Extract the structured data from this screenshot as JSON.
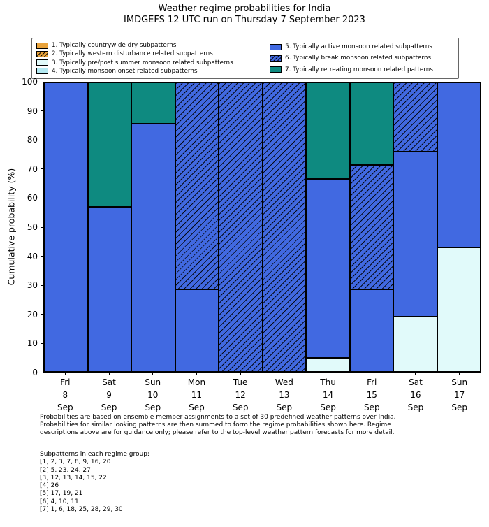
{
  "title": "Weather regime probabilities for India",
  "subtitle": "IMDGEFS 12 UTC run on Thursday 7 September 2023",
  "legend": {
    "split": 4,
    "items": [
      {
        "label": "1. Typically countrywide dry subpatterns",
        "color": "#e9a33b",
        "hatch": false
      },
      {
        "label": "2. Typically western disturbance related subpatterns",
        "color": "#e9a33b",
        "hatch": true
      },
      {
        "label": "3. Typically pre/post summer monsoon related subpatterns",
        "color": "#e1fafa",
        "hatch": false
      },
      {
        "label": "4. Typically monsoon onset related subpatterns",
        "color": "#b3e9f2",
        "hatch": false
      },
      {
        "label": "5. Typically active monsoon related subpatterns",
        "color": "#4169e1",
        "hatch": false
      },
      {
        "label": "6. Typically break monsoon related subpatterns",
        "color": "#4169e1",
        "hatch": true
      },
      {
        "label": "7. Typically retreating monsoon related patterns",
        "color": "#0e8a80",
        "hatch": false
      }
    ]
  },
  "axes": {
    "ylabel": "Cumulative probability (%)",
    "yticks": [
      0,
      10,
      20,
      30,
      40,
      50,
      60,
      70,
      80,
      90,
      100
    ]
  },
  "chart_data": {
    "type": "bar",
    "stacked": true,
    "title": "Weather regime probabilities for India",
    "subtitle": "IMDGEFS 12 UTC run on Thursday 7 September 2023",
    "xlabel": "",
    "ylabel": "Cumulative probability (%)",
    "ylim": [
      0,
      100
    ],
    "grid": false,
    "legend_position": "top",
    "categories": [
      {
        "day": "Fri",
        "date": "8",
        "month": "Sep"
      },
      {
        "day": "Sat",
        "date": "9",
        "month": "Sep"
      },
      {
        "day": "Sun",
        "date": "10",
        "month": "Sep"
      },
      {
        "day": "Mon",
        "date": "11",
        "month": "Sep"
      },
      {
        "day": "Tue",
        "date": "12",
        "month": "Sep"
      },
      {
        "day": "Wed",
        "date": "13",
        "month": "Sep"
      },
      {
        "day": "Thu",
        "date": "14",
        "month": "Sep"
      },
      {
        "day": "Fri",
        "date": "15",
        "month": "Sep"
      },
      {
        "day": "Sat",
        "date": "16",
        "month": "Sep"
      },
      {
        "day": "Sun",
        "date": "17",
        "month": "Sep"
      }
    ],
    "series": [
      {
        "name": "1. Typically countrywide dry subpatterns",
        "color": "#e9a33b",
        "hatch": false,
        "values": [
          0,
          0,
          0,
          0,
          0,
          0,
          0,
          0,
          0,
          0
        ]
      },
      {
        "name": "2. Typically western disturbance related subpatterns",
        "color": "#e9a33b",
        "hatch": true,
        "values": [
          0,
          0,
          0,
          0,
          0,
          0,
          0,
          0,
          0,
          0
        ]
      },
      {
        "name": "3. Typically pre/post summer monsoon related subpatterns",
        "color": "#e1fafa",
        "hatch": false,
        "values": [
          0,
          0,
          0,
          0,
          0,
          0,
          4.8,
          0,
          19.0,
          42.9
        ]
      },
      {
        "name": "4. Typically monsoon onset related subpatterns",
        "color": "#b3e9f2",
        "hatch": false,
        "values": [
          0,
          0,
          0,
          0,
          0,
          0,
          0,
          0,
          0,
          0
        ]
      },
      {
        "name": "5. Typically active monsoon related subpatterns",
        "color": "#4169e1",
        "hatch": false,
        "values": [
          100,
          57.1,
          85.7,
          28.6,
          0,
          0,
          61.9,
          28.6,
          57.1,
          57.1
        ]
      },
      {
        "name": "6. Typically break monsoon related subpatterns",
        "color": "#4169e1",
        "hatch": true,
        "values": [
          0,
          0,
          0,
          71.4,
          100,
          100,
          0,
          42.9,
          23.9,
          0
        ]
      },
      {
        "name": "7. Typically retreating monsoon related patterns",
        "color": "#0e8a80",
        "hatch": false,
        "values": [
          0,
          42.9,
          14.3,
          0,
          0,
          0,
          33.3,
          28.5,
          0,
          0
        ]
      }
    ]
  },
  "footer": {
    "lines": [
      "Probabilities are based on ensemble member assignments to a set of 30 predefined weather patterns over India.",
      "Probabilities for similar looking patterns are then summed to form the regime probabilities shown here. Regime",
      "descriptions above are for guidance only; please refer to the top-level weather pattern forecasts for more detail."
    ],
    "subpatterns_title": "Subpatterns in each regime group:",
    "subpatterns": [
      "[1] 2, 3, 7, 8, 9, 16, 20",
      "[2] 5, 23, 24, 27",
      "[3] 12, 13, 14, 15, 22",
      "[4] 26",
      "[5] 17, 19, 21",
      "[6] 4, 10, 11",
      "[7] 1, 6, 18, 25, 28, 29, 30"
    ]
  }
}
